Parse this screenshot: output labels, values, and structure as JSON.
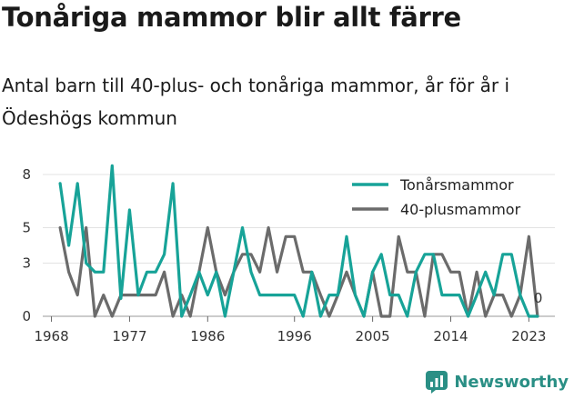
{
  "title": "Tonåriga mammor blir allt färre",
  "subtitle": "Antal barn till 40-plus- och tonåriga mammor, år för år i Ödeshögs kommun",
  "brand": {
    "name": "Newsworthy",
    "icon": "newsworthy-logo-icon"
  },
  "chart_data": {
    "type": "line",
    "title": "Tonåriga mammor blir allt färre",
    "subtitle": "Antal barn till 40-plus- och tonåriga mammor, år för år i Ödeshögs kommun",
    "xlabel": "",
    "ylabel": "",
    "x": [
      1969,
      1970,
      1971,
      1972,
      1973,
      1974,
      1975,
      1976,
      1977,
      1978,
      1979,
      1980,
      1981,
      1982,
      1983,
      1984,
      1985,
      1986,
      1987,
      1988,
      1989,
      1990,
      1991,
      1992,
      1993,
      1994,
      1995,
      1996,
      1997,
      1998,
      1999,
      2000,
      2001,
      2002,
      2003,
      2004,
      2005,
      2006,
      2007,
      2008,
      2009,
      2010,
      2011,
      2012,
      2013,
      2014,
      2015,
      2016,
      2017,
      2018,
      2019,
      2020,
      2021,
      2022,
      2023,
      2024
    ],
    "x_ticks": [
      1968,
      1977,
      1986,
      1996,
      2005,
      2014,
      2023
    ],
    "y_ticks": [
      0,
      3,
      5,
      8
    ],
    "xlim": [
      1967,
      2026
    ],
    "ylim": [
      0,
      8
    ],
    "grid": "horizontal",
    "legend_position": "top-right",
    "end_label": "0",
    "series": [
      {
        "name": "Tonårsmammor",
        "color": "#17a398",
        "values": [
          7.5,
          4,
          7.5,
          3,
          2.5,
          2.5,
          8.5,
          1,
          6,
          1.2,
          2.5,
          2.5,
          3.5,
          7.5,
          0,
          1.2,
          2.5,
          1.2,
          2.5,
          0,
          2.5,
          5,
          2.5,
          1.2,
          1.2,
          1.2,
          1.2,
          1.2,
          0,
          2.5,
          0,
          1.2,
          1.2,
          4.5,
          1.2,
          0,
          2.5,
          3.5,
          1.2,
          1.2,
          0,
          2.5,
          3.5,
          3.5,
          1.2,
          1.2,
          1.2,
          0,
          1.2,
          2.5,
          1.2,
          3.5,
          3.5,
          1.2,
          0,
          0
        ]
      },
      {
        "name": "40-plusmammor",
        "color": "#6b6b6b",
        "values": [
          5,
          2.5,
          1.2,
          5,
          0,
          1.2,
          0,
          1.2,
          1.2,
          1.2,
          1.2,
          1.2,
          2.5,
          0,
          1.2,
          0,
          2.5,
          5,
          2.5,
          1.2,
          2.5,
          3.5,
          3.5,
          2.5,
          5,
          2.5,
          4.5,
          4.5,
          2.5,
          2.5,
          1.2,
          0,
          1.2,
          2.5,
          1.2,
          0,
          2.5,
          0,
          0,
          4.5,
          2.5,
          2.5,
          0,
          3.5,
          3.5,
          2.5,
          2.5,
          0,
          2.5,
          0,
          1.2,
          1.2,
          0,
          1.2,
          4.5,
          0
        ]
      }
    ]
  }
}
